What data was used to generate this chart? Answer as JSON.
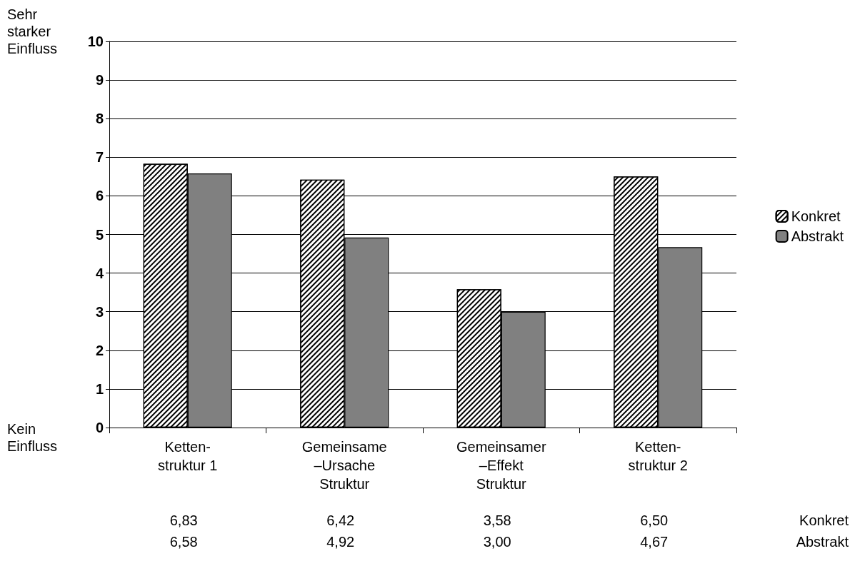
{
  "chart_data": {
    "type": "bar",
    "categories": [
      "Ketten-\nstruktur 1",
      "Gemeinsame\n–Ursache\nStruktur",
      "Gemeinsamer\n–Effekt\nStruktur",
      "Ketten-\nstruktur 2"
    ],
    "series": [
      {
        "name": "Konkret",
        "color": "#ffffff",
        "values": [
          6.83,
          6.42,
          3.58,
          6.5
        ],
        "value_labels": [
          "6,83",
          "6,42",
          "3,58",
          "6,50"
        ]
      },
      {
        "name": "Abstrakt",
        "color": "#808080",
        "values": [
          6.58,
          4.92,
          3.0,
          4.67
        ],
        "value_labels": [
          "6,58",
          "4,92",
          "3,00",
          "4,67"
        ]
      }
    ],
    "ylim": [
      0,
      10
    ],
    "yticks": [
      0,
      1,
      2,
      3,
      4,
      5,
      6,
      7,
      8,
      9,
      10
    ],
    "annotations": [
      "Sehr\nstarker\nEinfluss",
      "Kein\nEinfluss"
    ],
    "grid": "y",
    "legend": "right"
  }
}
